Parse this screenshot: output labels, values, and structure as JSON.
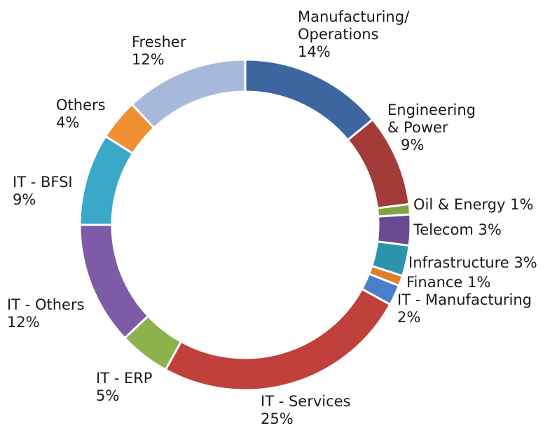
{
  "chart_data": {
    "type": "donut",
    "categories": [
      "Manufacturing/\nOperations",
      "Engineering\n& Power",
      "Oil & Energy",
      "Telecom",
      "Infrastructure",
      "Finance",
      "IT - Manufacturing",
      "IT - Services",
      "IT - ERP",
      "IT - Others",
      "IT - BFSI",
      "Others",
      "Fresher"
    ],
    "values": [
      14,
      9,
      1,
      3,
      3,
      1,
      2,
      25,
      5,
      12,
      9,
      4,
      12
    ],
    "value_labels": [
      "14%",
      "9%",
      "1%",
      "3%",
      "3%",
      "1%",
      "2%",
      "25%",
      "5%",
      "12%",
      "9%",
      "4%",
      "12%"
    ],
    "colors": [
      "#3d66a0",
      "#a33b38",
      "#7ea540",
      "#6a4a93",
      "#2c93ad",
      "#e27f2c",
      "#4a7fc9",
      "#c0403c",
      "#8db14c",
      "#7d5ba6",
      "#3aa8c8",
      "#f08f33",
      "#a6b9db"
    ]
  }
}
